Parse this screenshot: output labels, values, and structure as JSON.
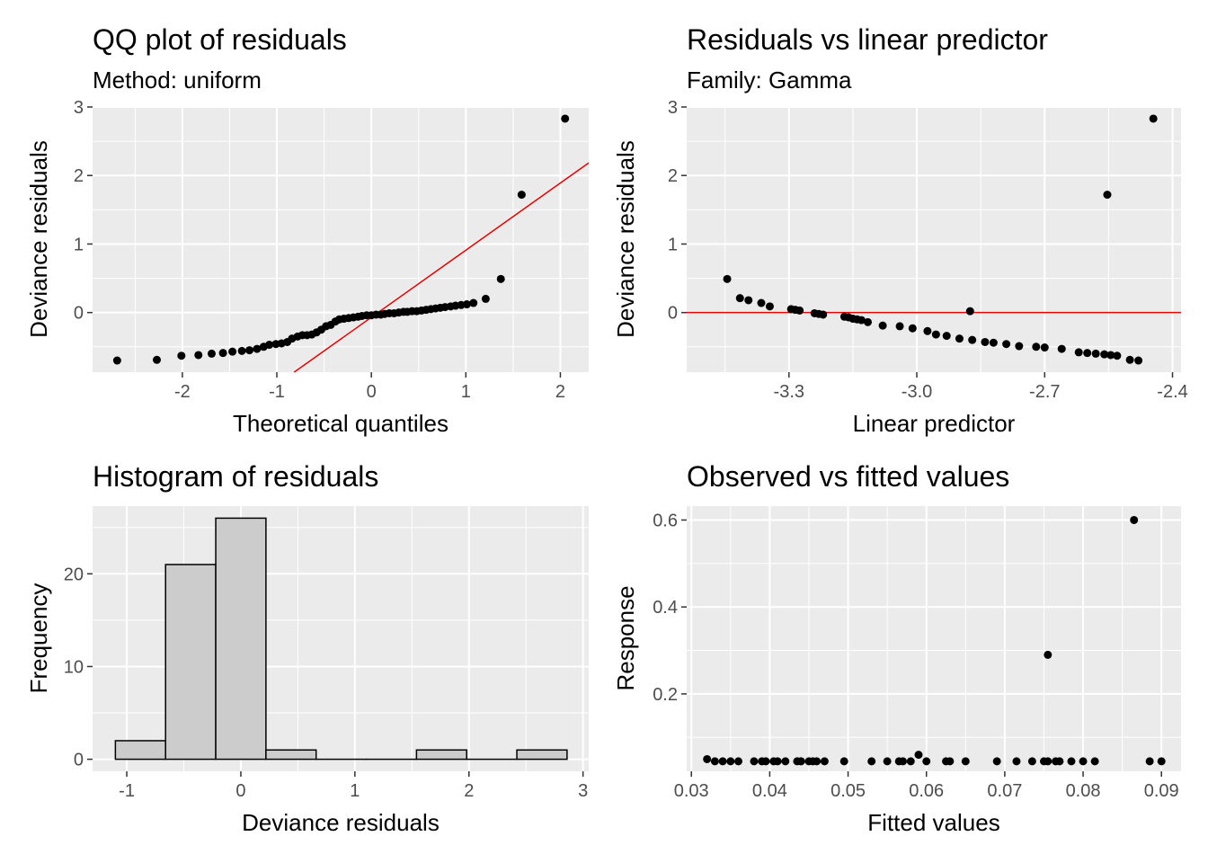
{
  "chart_data": [
    {
      "id": "qq",
      "type": "scatter",
      "title": "QQ plot of residuals",
      "subtitle": "Method: uniform",
      "xlabel": "Theoretical quantiles",
      "ylabel": "Deviance residuals",
      "xlim": [
        -2.95,
        2.3
      ],
      "ylim": [
        -0.87,
        3.0
      ],
      "xticks": [
        -2,
        -1,
        0,
        1,
        2
      ],
      "xtick_labels": [
        "-2",
        "-1",
        "0",
        "1",
        "2"
      ],
      "yticks": [
        0,
        1,
        2,
        3
      ],
      "ytick_labels": [
        "0",
        "1",
        "2",
        "3"
      ],
      "grid": true,
      "reference_line": {
        "slope": 0.98,
        "intercept": -0.07,
        "color": "#e60000"
      },
      "points": [
        [
          -2.69,
          -0.7
        ],
        [
          -2.27,
          -0.69
        ],
        [
          -2.01,
          -0.63
        ],
        [
          -1.83,
          -0.62
        ],
        [
          -1.69,
          -0.6
        ],
        [
          -1.57,
          -0.59
        ],
        [
          -1.47,
          -0.57
        ],
        [
          -1.37,
          -0.56
        ],
        [
          -1.29,
          -0.55
        ],
        [
          -1.21,
          -0.53
        ],
        [
          -1.14,
          -0.5
        ],
        [
          -1.08,
          -0.47
        ],
        [
          -1.01,
          -0.46
        ],
        [
          -0.95,
          -0.45
        ],
        [
          -0.89,
          -0.43
        ],
        [
          -0.84,
          -0.38
        ],
        [
          -0.78,
          -0.35
        ],
        [
          -0.73,
          -0.33
        ],
        [
          -0.68,
          -0.33
        ],
        [
          -0.63,
          -0.32
        ],
        [
          -0.58,
          -0.29
        ],
        [
          -0.53,
          -0.25
        ],
        [
          -0.48,
          -0.2
        ],
        [
          -0.43,
          -0.18
        ],
        [
          -0.38,
          -0.13
        ],
        [
          -0.34,
          -0.1
        ],
        [
          -0.29,
          -0.09
        ],
        [
          -0.24,
          -0.08
        ],
        [
          -0.19,
          -0.07
        ],
        [
          -0.14,
          -0.06
        ],
        [
          -0.1,
          -0.05
        ],
        [
          -0.05,
          -0.04
        ],
        [
          0.0,
          -0.04
        ],
        [
          0.05,
          -0.03
        ],
        [
          0.1,
          -0.03
        ],
        [
          0.14,
          -0.02
        ],
        [
          0.19,
          -0.01
        ],
        [
          0.24,
          -0.01
        ],
        [
          0.29,
          0.0
        ],
        [
          0.34,
          0.01
        ],
        [
          0.38,
          0.01
        ],
        [
          0.43,
          0.02
        ],
        [
          0.48,
          0.02
        ],
        [
          0.53,
          0.03
        ],
        [
          0.58,
          0.04
        ],
        [
          0.63,
          0.05
        ],
        [
          0.68,
          0.06
        ],
        [
          0.73,
          0.07
        ],
        [
          0.78,
          0.08
        ],
        [
          0.84,
          0.09
        ],
        [
          0.89,
          0.1
        ],
        [
          0.95,
          0.11
        ],
        [
          1.01,
          0.12
        ],
        [
          1.08,
          0.14
        ],
        [
          1.21,
          0.2
        ],
        [
          1.37,
          0.49
        ],
        [
          1.59,
          1.72
        ],
        [
          2.05,
          2.83
        ]
      ]
    },
    {
      "id": "resid-lp",
      "type": "scatter",
      "title": "Residuals vs linear predictor",
      "subtitle": "Family: Gamma",
      "xlabel": "Linear predictor",
      "ylabel": "Deviance residuals",
      "xlim": [
        -3.54,
        -2.38
      ],
      "ylim": [
        -0.87,
        3.0
      ],
      "xticks": [
        -3.3,
        -3.0,
        -2.7,
        -2.4
      ],
      "xtick_labels": [
        "-3.3",
        "-3.0",
        "-2.7",
        "-2.4"
      ],
      "yticks": [
        0,
        1,
        2,
        3
      ],
      "ytick_labels": [
        "0",
        "1",
        "2",
        "3"
      ],
      "grid": true,
      "reference_line": {
        "y": 0,
        "color": "#e60000"
      },
      "points": [
        [
          -3.445,
          0.49
        ],
        [
          -3.415,
          0.21
        ],
        [
          -3.395,
          0.18
        ],
        [
          -3.365,
          0.14
        ],
        [
          -3.345,
          0.09
        ],
        [
          -3.295,
          0.05
        ],
        [
          -3.285,
          0.04
        ],
        [
          -3.275,
          0.03
        ],
        [
          -3.24,
          -0.01
        ],
        [
          -3.23,
          -0.02
        ],
        [
          -3.22,
          -0.03
        ],
        [
          -3.17,
          -0.06
        ],
        [
          -3.16,
          -0.07
        ],
        [
          -3.15,
          -0.09
        ],
        [
          -3.14,
          -0.1
        ],
        [
          -3.13,
          -0.11
        ],
        [
          -3.115,
          -0.14
        ],
        [
          -3.08,
          -0.19
        ],
        [
          -3.04,
          -0.2
        ],
        [
          -3.01,
          -0.23
        ],
        [
          -2.975,
          -0.27
        ],
        [
          -2.955,
          -0.32
        ],
        [
          -2.93,
          -0.34
        ],
        [
          -2.9,
          -0.38
        ],
        [
          -2.87,
          -0.4
        ],
        [
          -2.84,
          -0.43
        ],
        [
          -2.82,
          -0.44
        ],
        [
          -2.79,
          -0.46
        ],
        [
          -2.76,
          -0.49
        ],
        [
          -2.72,
          -0.5
        ],
        [
          -2.7,
          -0.51
        ],
        [
          -2.66,
          -0.53
        ],
        [
          -2.62,
          -0.58
        ],
        [
          -2.6,
          -0.59
        ],
        [
          -2.58,
          -0.6
        ],
        [
          -2.56,
          -0.61
        ],
        [
          -2.545,
          -0.62
        ],
        [
          -2.53,
          -0.63
        ],
        [
          -2.5,
          -0.69
        ],
        [
          -2.48,
          -0.7
        ],
        [
          -2.875,
          0.02
        ],
        [
          -2.553,
          1.72
        ],
        [
          -2.445,
          2.83
        ]
      ]
    },
    {
      "id": "hist",
      "type": "bar",
      "title": "Histogram of residuals",
      "xlabel": "Deviance residuals",
      "ylabel": "Frequency",
      "xlim": [
        -1.3,
        3.05
      ],
      "ylim": [
        -1.3,
        27.3
      ],
      "xticks": [
        -1,
        0,
        1,
        2,
        3
      ],
      "xtick_labels": [
        "-1",
        "0",
        "1",
        "2",
        "3"
      ],
      "yticks": [
        0,
        10,
        20
      ],
      "ytick_labels": [
        "0",
        "10",
        "20"
      ],
      "grid": true,
      "bin_edges": [
        -1.1,
        -0.66,
        -0.22,
        0.22,
        0.66,
        1.1,
        1.54,
        1.98,
        2.42,
        2.86
      ],
      "values": [
        2,
        21,
        26,
        1,
        0,
        0,
        1,
        0,
        1
      ],
      "fill": "#cccccc"
    },
    {
      "id": "obs-fit",
      "type": "scatter",
      "title": "Observed vs fitted values",
      "xlabel": "Fitted values",
      "ylabel": "Response",
      "xlim": [
        0.0294,
        0.0925
      ],
      "ylim": [
        0.022,
        0.632
      ],
      "xticks": [
        0.03,
        0.04,
        0.05,
        0.06,
        0.07,
        0.08,
        0.09
      ],
      "xtick_labels": [
        "0.03",
        "0.04",
        "0.05",
        "0.06",
        "0.07",
        "0.08",
        "0.09"
      ],
      "yticks": [
        0.2,
        0.4,
        0.6
      ],
      "ytick_labels": [
        "0.2",
        "0.4",
        "0.6"
      ],
      "grid": true,
      "points": [
        [
          0.032,
          0.05
        ],
        [
          0.033,
          0.045
        ],
        [
          0.034,
          0.045
        ],
        [
          0.035,
          0.045
        ],
        [
          0.036,
          0.045
        ],
        [
          0.038,
          0.045
        ],
        [
          0.039,
          0.045
        ],
        [
          0.0395,
          0.045
        ],
        [
          0.0405,
          0.045
        ],
        [
          0.041,
          0.045
        ],
        [
          0.042,
          0.045
        ],
        [
          0.0435,
          0.045
        ],
        [
          0.044,
          0.045
        ],
        [
          0.045,
          0.045
        ],
        [
          0.0455,
          0.045
        ],
        [
          0.046,
          0.045
        ],
        [
          0.047,
          0.045
        ],
        [
          0.0495,
          0.045
        ],
        [
          0.053,
          0.045
        ],
        [
          0.055,
          0.045
        ],
        [
          0.0565,
          0.045
        ],
        [
          0.057,
          0.045
        ],
        [
          0.058,
          0.045
        ],
        [
          0.059,
          0.06
        ],
        [
          0.06,
          0.045
        ],
        [
          0.0625,
          0.045
        ],
        [
          0.063,
          0.045
        ],
        [
          0.065,
          0.045
        ],
        [
          0.069,
          0.045
        ],
        [
          0.0715,
          0.045
        ],
        [
          0.0735,
          0.045
        ],
        [
          0.075,
          0.045
        ],
        [
          0.0755,
          0.045
        ],
        [
          0.0765,
          0.045
        ],
        [
          0.077,
          0.045
        ],
        [
          0.0785,
          0.045
        ],
        [
          0.08,
          0.045
        ],
        [
          0.0815,
          0.045
        ],
        [
          0.0755,
          0.29
        ],
        [
          0.0865,
          0.6
        ],
        [
          0.0885,
          0.045
        ],
        [
          0.09,
          0.045
        ]
      ]
    }
  ]
}
